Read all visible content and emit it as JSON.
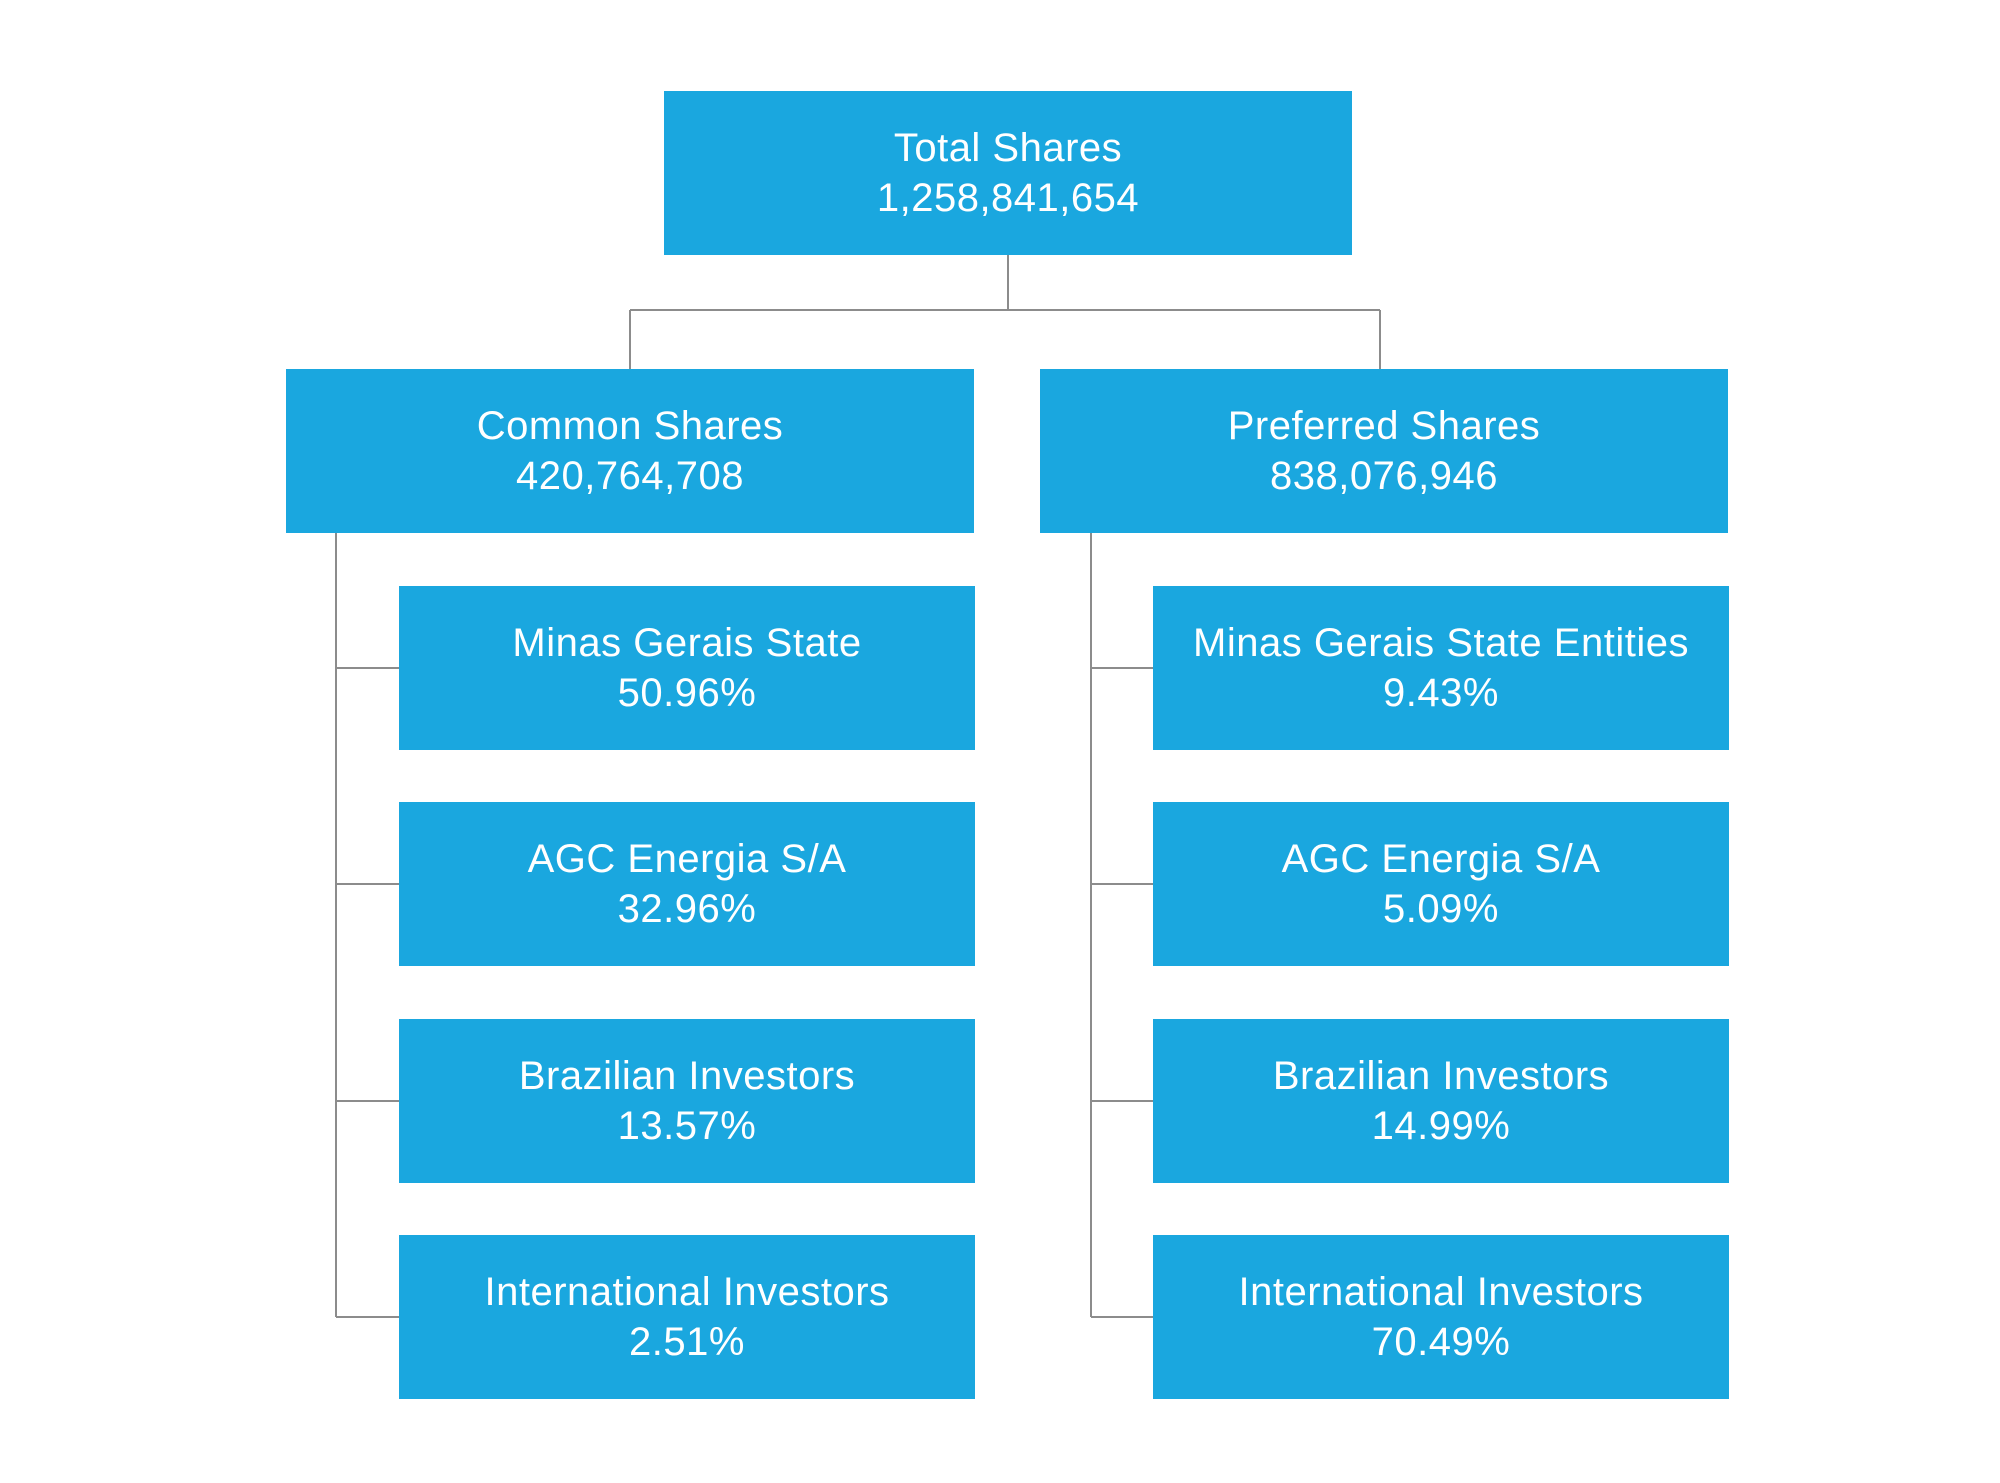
{
  "colors": {
    "box_fill": "#1aa7df",
    "box_text": "#ffffff",
    "connector": "#8c8c8c",
    "background": "#ffffff"
  },
  "root": {
    "label": "Total Shares",
    "value": "1,258,841,654"
  },
  "categories": [
    {
      "label": "Common Shares",
      "value": "420,764,708",
      "holders": [
        {
          "label": "Minas Gerais State",
          "value": "50.96%"
        },
        {
          "label": "AGC Energia S/A",
          "value": "32.96%"
        },
        {
          "label": "Brazilian Investors",
          "value": "13.57%"
        },
        {
          "label": "International Investors",
          "value": "2.51%"
        }
      ]
    },
    {
      "label": "Preferred Shares",
      "value": "838,076,946",
      "holders": [
        {
          "label": "Minas Gerais State Entities",
          "value": "9.43%"
        },
        {
          "label": "AGC Energia S/A",
          "value": "5.09%"
        },
        {
          "label": "Brazilian Investors",
          "value": "14.99%"
        },
        {
          "label": "International Investors",
          "value": "70.49%"
        }
      ]
    }
  ]
}
